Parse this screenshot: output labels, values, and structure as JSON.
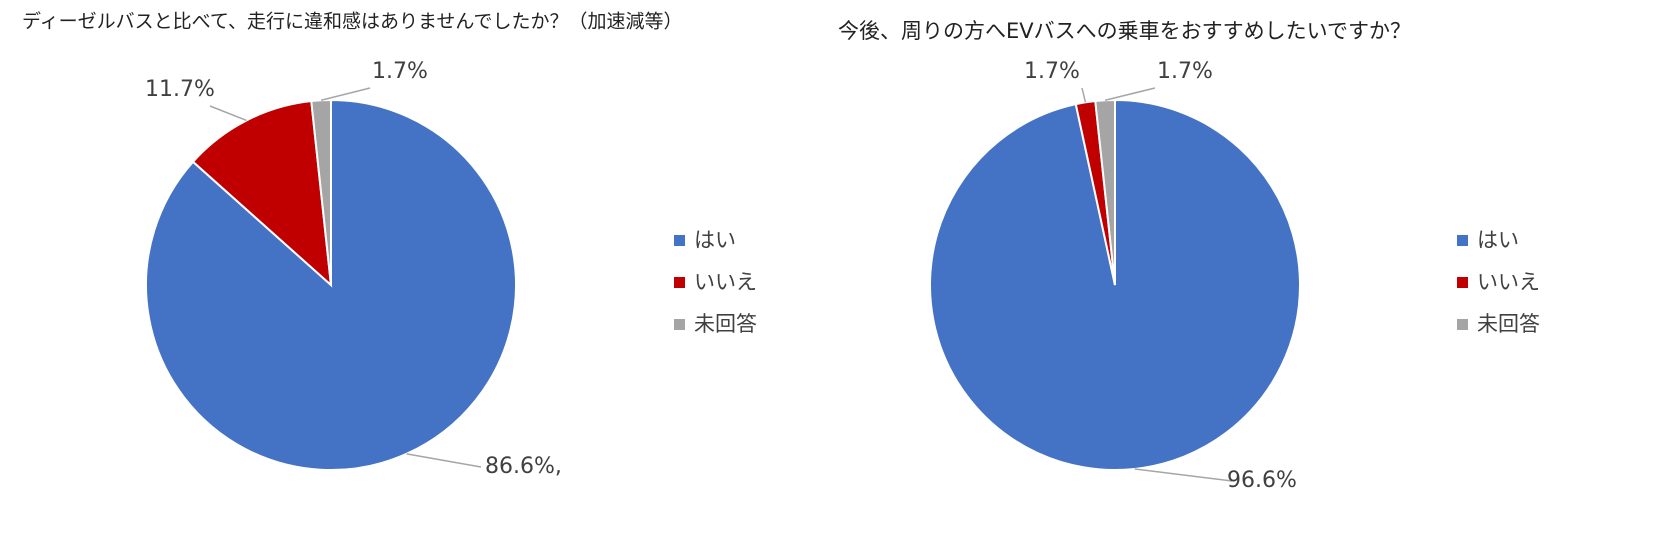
{
  "chart_data": [
    {
      "type": "pie",
      "title": "ディーゼルバスと比べて、走行に違和感はありませんでしたか？（加速減等）",
      "categories": [
        "はい",
        "いいえ",
        "未回答"
      ],
      "values": [
        86.6,
        11.7,
        1.7
      ],
      "value_labels": [
        "86.6%,",
        "11.7%",
        "1.7%"
      ],
      "colors": [
        "#4472c4",
        "#c00000",
        "#a5a5a5"
      ]
    },
    {
      "type": "pie",
      "title": "今後、周りの方へEVバスへの乗車をおすすめしたいですか？",
      "categories": [
        "はい",
        "いいえ",
        "未回答"
      ],
      "values": [
        96.6,
        1.7,
        1.7
      ],
      "value_labels": [
        "96.6%",
        "1.7%",
        "1.7%"
      ],
      "colors": [
        "#4472c4",
        "#c00000",
        "#a5a5a5"
      ]
    }
  ]
}
